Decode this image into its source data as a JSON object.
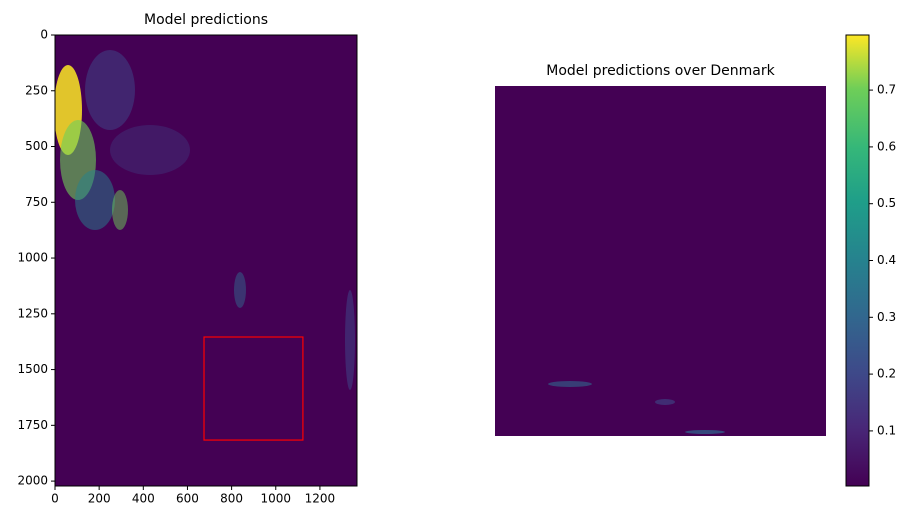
{
  "chart_data": [
    {
      "type": "image",
      "title": "Model predictions",
      "colormap": "viridis",
      "xlim": [
        0,
        1368
      ],
      "ylim": [
        2022,
        0
      ],
      "xticks": [
        0,
        200,
        400,
        600,
        800,
        1000,
        1200
      ],
      "yticks": [
        0,
        250,
        500,
        750,
        1000,
        1250,
        1500,
        1750,
        2000
      ],
      "highlight": {
        "x": [
          675,
          1123
        ],
        "y": [
          1354,
          1816
        ],
        "color": "#ff0000"
      }
    },
    {
      "type": "image",
      "title": "Model predictions over Denmark",
      "colormap": "viridis"
    },
    {
      "type": "colorbar",
      "colormap": "viridis",
      "clim": [
        0.003,
        0.797
      ],
      "ticks": [
        0.1,
        0.2,
        0.3,
        0.4,
        0.5,
        0.6,
        0.7
      ]
    }
  ]
}
